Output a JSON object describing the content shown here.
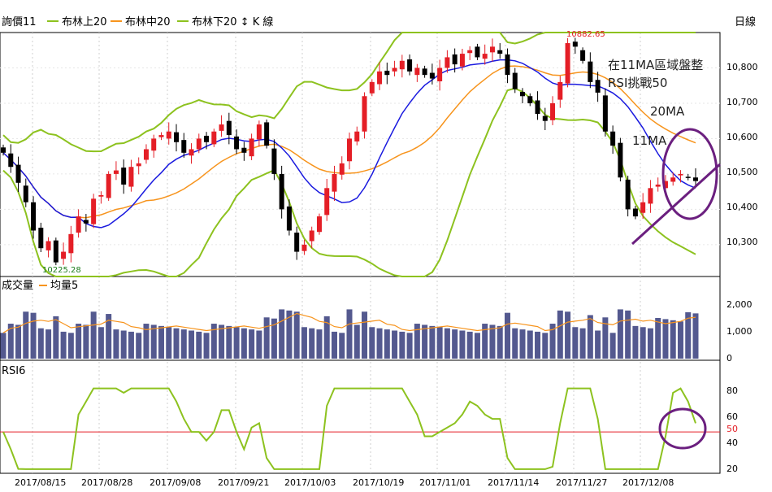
{
  "chart_data": {
    "type": "candlestick",
    "dates": [
      "2017/08/15",
      "2017/08/28",
      "2017/09/08",
      "2017/09/21",
      "2017/10/03",
      "2017/10/19",
      "2017/11/01",
      "2017/11/14",
      "2017/11/27",
      "2017/12/08"
    ],
    "price_panel": {
      "legend_prefix": "詢價11",
      "legend": [
        {
          "label": "布林上20",
          "color": "#8dc21f"
        },
        {
          "label": "布林中20",
          "color": "#f7941d"
        },
        {
          "label": "布林下20 ↕ K 線",
          "color": "#8dc21f"
        }
      ],
      "period_label": "日線",
      "y_ticks": [
        "10,800",
        "10,700",
        "10,600",
        "10,500",
        "10,400",
        "10,300"
      ],
      "ylim": [
        10210,
        10900
      ],
      "high_label": "10882.65",
      "low_label": "10225.28",
      "annotations": [
        "在11MA區域盤整",
        "RSI挑戰50",
        "20MA",
        "11MA"
      ],
      "colors": {
        "up": "#e41e26",
        "down": "#000000",
        "ma11": "#1a1adf",
        "ma20": "#f7941d",
        "bollinger": "#8dc21f",
        "trend": "#6b1f7f"
      },
      "close": [
        10560,
        10520,
        10475,
        10420,
        10340,
        10290,
        10310,
        10250,
        10280,
        10330,
        10380,
        10360,
        10430,
        10440,
        10500,
        10510,
        10470,
        10520,
        10530,
        10570,
        10600,
        10610,
        10620,
        10590,
        10560,
        10570,
        10600,
        10590,
        10620,
        10640,
        10610,
        10570,
        10560,
        10600,
        10640,
        10580,
        10500,
        10400,
        10340,
        10280,
        10300,
        10340,
        10380,
        10460,
        10500,
        10530,
        10600,
        10620,
        10720,
        10760,
        10790,
        10780,
        10800,
        10820,
        10790,
        10800,
        10780,
        10770,
        10800,
        10830,
        10810,
        10840,
        10850,
        10830,
        10840,
        10860,
        10840,
        10780,
        10740,
        10720,
        10700,
        10670,
        10650,
        10700,
        10760,
        10870,
        10860,
        10820,
        10760,
        10730,
        10620,
        10580,
        10490,
        10400,
        10380,
        10420,
        10460,
        10470,
        10480,
        10490,
        10500,
        10490,
        10480
      ]
    },
    "volume_panel": {
      "legend": [
        {
          "label": "成交量",
          "color": "#000000"
        },
        {
          "label": "均量5",
          "color": "#f7941d"
        }
      ],
      "y_ticks": [
        "2,000",
        "1,000",
        "0"
      ],
      "ylim": [
        0,
        2300
      ],
      "bar_color": "#54598f"
    },
    "rsi_panel": {
      "legend": "RSI6",
      "y_ticks": [
        "80",
        "60",
        "50",
        "40",
        "20"
      ],
      "ylim": [
        18,
        90
      ],
      "reference": 50,
      "line_color": "#8dc21f"
    }
  }
}
